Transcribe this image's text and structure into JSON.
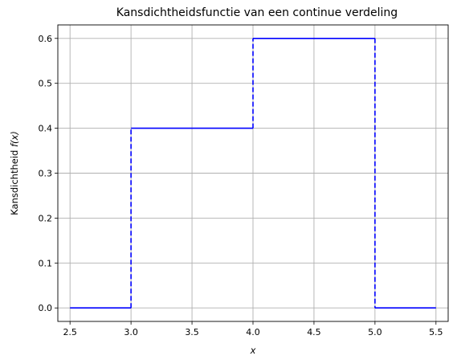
{
  "chart_data": {
    "type": "line",
    "title": "Kansdichtheidsfunctie van een continue verdeling",
    "xlabel": "x",
    "ylabel_text": "Kansdichtheid ",
    "ylabel_math": "f(x)",
    "xlim": [
      2.4,
      5.6
    ],
    "ylim": [
      -0.03,
      0.63
    ],
    "xticks": [
      "2.5",
      "3.0",
      "3.5",
      "4.0",
      "4.5",
      "5.0",
      "5.5"
    ],
    "yticks": [
      "0.0",
      "0.1",
      "0.2",
      "0.3",
      "0.4",
      "0.5",
      "0.6"
    ],
    "grid": true,
    "color": "#0000ff",
    "series": [
      {
        "style": "solid",
        "segments": [
          {
            "x": [
              2.5,
              3.0
            ],
            "y": [
              0.0,
              0.0
            ]
          },
          {
            "x": [
              3.0,
              4.0
            ],
            "y": [
              0.4,
              0.4
            ]
          },
          {
            "x": [
              4.0,
              5.0
            ],
            "y": [
              0.6,
              0.6
            ]
          },
          {
            "x": [
              5.0,
              5.5
            ],
            "y": [
              0.0,
              0.0
            ]
          }
        ]
      },
      {
        "style": "dashed",
        "segments": [
          {
            "x": [
              3.0,
              3.0
            ],
            "y": [
              0.0,
              0.4
            ]
          },
          {
            "x": [
              4.0,
              4.0
            ],
            "y": [
              0.4,
              0.6
            ]
          },
          {
            "x": [
              5.0,
              5.0
            ],
            "y": [
              0.6,
              0.0
            ]
          }
        ]
      }
    ]
  }
}
